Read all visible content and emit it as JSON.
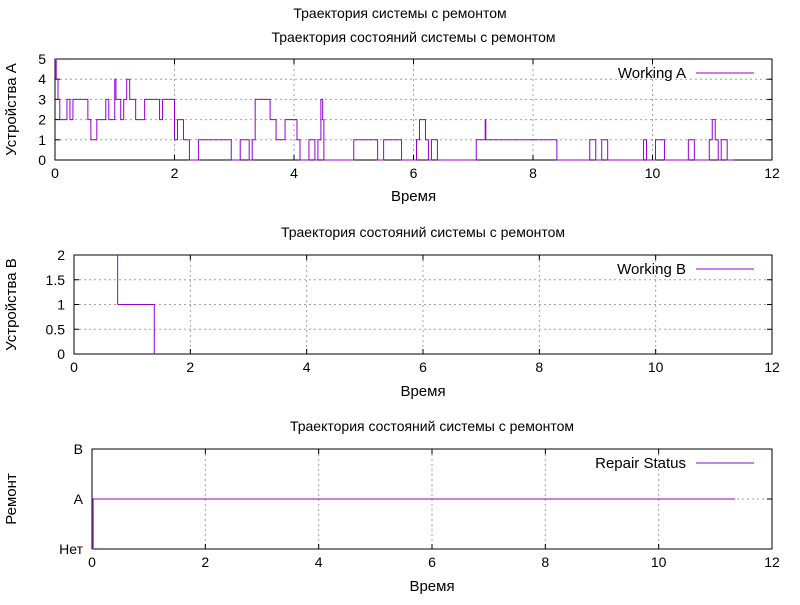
{
  "page_title": "Траектория системы с ремонтом",
  "colors": {
    "series": "#9400d3",
    "grid": "#a0a0a0",
    "axis": "#000000"
  },
  "chart_data": [
    {
      "type": "line",
      "title": "Траектория состояний системы с ремонтом",
      "xlabel": "Время",
      "ylabel": "Устройства A",
      "xlim": [
        0,
        12
      ],
      "ylim": [
        0,
        5
      ],
      "xticks": [
        0,
        2,
        4,
        6,
        8,
        10,
        12
      ],
      "yticks": [
        0,
        1,
        2,
        3,
        4,
        5
      ],
      "grid": true,
      "legend_position": "top-right",
      "series": [
        {
          "name": "Working A",
          "step": true,
          "x": [
            0,
            0.02,
            0.05,
            0.08,
            0.1,
            0.2,
            0.25,
            0.3,
            0.35,
            0.55,
            0.58,
            0.6,
            0.7,
            0.72,
            0.75,
            0.85,
            0.9,
            0.95,
            1.0,
            1.02,
            1.05,
            1.1,
            1.15,
            1.2,
            1.25,
            1.3,
            1.35,
            1.45,
            1.5,
            1.75,
            1.8,
            1.9,
            2.0,
            2.05,
            2.15,
            2.25,
            2.4,
            2.95,
            3.1,
            3.25,
            3.3,
            3.35,
            3.6,
            3.7,
            3.75,
            3.85,
            4.0,
            4.05,
            4.1,
            4.25,
            4.35,
            4.4,
            4.45,
            4.48,
            4.5,
            4.6,
            5.0,
            5.35,
            5.4,
            5.5,
            5.8,
            6.05,
            6.1,
            6.2,
            6.25,
            6.3,
            6.4,
            7.05,
            7.2,
            7.21,
            8.4,
            8.95,
            9.05,
            9.15,
            9.25,
            9.85,
            9.9,
            10.05,
            10.2,
            10.6,
            10.7,
            10.95,
            11.0,
            11.05,
            11.1,
            11.15,
            11.25,
            11.35
          ],
          "y": [
            5,
            4,
            3,
            2,
            2,
            3,
            2,
            3,
            3,
            2,
            2,
            1,
            2,
            2,
            2,
            3,
            2,
            2,
            4,
            3,
            3,
            2,
            3,
            4,
            3,
            3,
            2,
            2,
            3,
            2,
            3,
            3,
            1,
            2,
            1,
            0,
            1,
            0,
            1,
            0,
            1,
            3,
            2,
            1,
            1,
            2,
            2,
            1,
            0,
            1,
            0,
            1,
            3,
            2,
            0,
            0,
            1,
            1,
            0,
            1,
            0,
            1,
            2,
            1,
            0,
            1,
            0,
            1,
            2,
            1,
            0,
            1,
            0,
            1,
            0,
            1,
            0,
            1,
            0,
            1,
            0,
            1,
            2,
            1,
            0,
            1,
            0,
            0
          ]
        }
      ]
    },
    {
      "type": "line",
      "title": "Траектория состояний системы с ремонтом",
      "xlabel": "Время",
      "ylabel": "Устройства B",
      "xlim": [
        0,
        12
      ],
      "ylim": [
        0,
        2
      ],
      "xticks": [
        0,
        2,
        4,
        6,
        8,
        10,
        12
      ],
      "yticks": [
        0,
        0.5,
        1,
        1.5,
        2
      ],
      "grid": true,
      "legend_position": "top-right",
      "series": [
        {
          "name": "Working B",
          "step": true,
          "x": [
            0.75,
            1.38,
            1.38
          ],
          "y": [
            1,
            0,
            0
          ]
        }
      ]
    },
    {
      "type": "line",
      "title": "Траектория состояний системы с ремонтом",
      "xlabel": "Время",
      "ylabel": "Ремонт",
      "xlim": [
        0,
        12
      ],
      "ylim": [
        0,
        2
      ],
      "xticks": [
        0,
        2,
        4,
        6,
        8,
        10,
        12
      ],
      "yticks": [
        0,
        1,
        2
      ],
      "ytick_labels": [
        "Нет",
        "A",
        "B"
      ],
      "grid": true,
      "legend_position": "top-right",
      "series": [
        {
          "name": "Repair Status",
          "step": true,
          "x": [
            0,
            0.02,
            11.35
          ],
          "y": [
            0,
            1,
            1
          ]
        }
      ]
    }
  ]
}
